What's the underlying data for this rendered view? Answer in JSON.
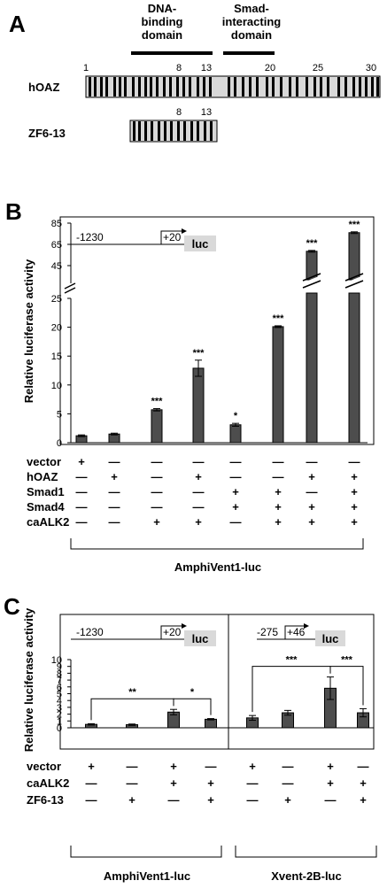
{
  "panelA": {
    "letter": "A",
    "dna_domain": [
      "DNA-",
      "binding",
      "domain"
    ],
    "smad_domain": [
      "Smad-",
      "interacting",
      "domain"
    ],
    "positions": [
      "1",
      "8",
      "13",
      "20",
      "25",
      "30"
    ],
    "proteins": [
      "hOAZ",
      "ZF6-13"
    ],
    "zf_positions": [
      "8",
      "13"
    ]
  },
  "panelB": {
    "letter": "B",
    "construct": {
      "start": "-1230",
      "end": "+20",
      "reporter": "luc"
    },
    "reporter_name": "AmphiVent1-luc",
    "row_labels": [
      "vector",
      "hOAZ",
      "Smad1",
      "Smad4",
      "caALK2"
    ],
    "signs": [
      [
        "+",
        "—",
        "—",
        "—",
        "—"
      ],
      [
        "—",
        "+",
        "—",
        "—",
        "—"
      ],
      [
        "—",
        "—",
        "—",
        "—",
        "+"
      ],
      [
        "—",
        "+",
        "—",
        "—",
        "+"
      ],
      [
        "—",
        "—",
        "+",
        "+",
        "—"
      ],
      [
        "—",
        "—",
        "+",
        "+",
        "+"
      ],
      [
        "—",
        "+",
        "—",
        "+",
        "+"
      ],
      [
        "—",
        "+",
        "+",
        "+",
        "+"
      ]
    ],
    "significance": [
      "",
      "",
      "***",
      "***",
      "*",
      "***",
      "***",
      "***"
    ]
  },
  "panelC": {
    "letter": "C",
    "constructs": [
      {
        "start": "-1230",
        "end": "+20",
        "reporter": "luc"
      },
      {
        "start": "-275",
        "end": "+46",
        "reporter": "luc"
      }
    ],
    "reporter_names": [
      "AmphiVent1-luc",
      "Xvent-2B-luc"
    ],
    "row_labels": [
      "vector",
      "caALK2",
      "ZF6-13"
    ],
    "signs": [
      [
        "+",
        "—",
        "—"
      ],
      [
        "—",
        "—",
        "+"
      ],
      [
        "+",
        "+",
        "—"
      ],
      [
        "—",
        "+",
        "+"
      ],
      [
        "+",
        "—",
        "—"
      ],
      [
        "—",
        "—",
        "+"
      ],
      [
        "+",
        "+",
        "—"
      ],
      [
        "—",
        "+",
        "+"
      ]
    ],
    "brackets": [
      "**",
      "*",
      "***",
      "***"
    ]
  },
  "chart_data": [
    {
      "type": "bar",
      "panel": "B",
      "ylabel": "Relative luciferase activity",
      "axis_break": true,
      "y_lower": {
        "range": [
          0,
          25
        ],
        "ticks": [
          0,
          5,
          10,
          15,
          20,
          25
        ]
      },
      "y_upper": {
        "range": [
          35,
          85
        ],
        "ticks": [
          45,
          65,
          85
        ]
      },
      "values": [
        1.2,
        1.5,
        5.7,
        12.9,
        3.1,
        20.1,
        58.5,
        76.0
      ],
      "errors": [
        0.15,
        0.15,
        0.2,
        1.4,
        0.25,
        0.15,
        0.8,
        0.8
      ],
      "significance": [
        "",
        "",
        "***",
        "***",
        "*",
        "***",
        "***",
        "***"
      ]
    },
    {
      "type": "bar",
      "panel": "C",
      "ylabel": "Relative luciferase activity",
      "ylim": [
        0,
        10
      ],
      "ticks": [
        0,
        1,
        2,
        3,
        4,
        5,
        6,
        7,
        8,
        9,
        10
      ],
      "values": [
        0.5,
        0.45,
        2.3,
        1.25,
        1.45,
        2.2,
        5.8,
        2.2
      ],
      "errors": [
        0.1,
        0.1,
        0.4,
        0.1,
        0.35,
        0.35,
        1.65,
        0.6
      ],
      "comparisons": [
        {
          "bars": [
            1,
            3
          ],
          "label": "**"
        },
        {
          "bars": [
            3,
            4
          ],
          "label": "*"
        },
        {
          "bars": [
            5,
            7
          ],
          "label": "***"
        },
        {
          "bars": [
            7,
            8
          ],
          "label": "***"
        }
      ]
    }
  ]
}
